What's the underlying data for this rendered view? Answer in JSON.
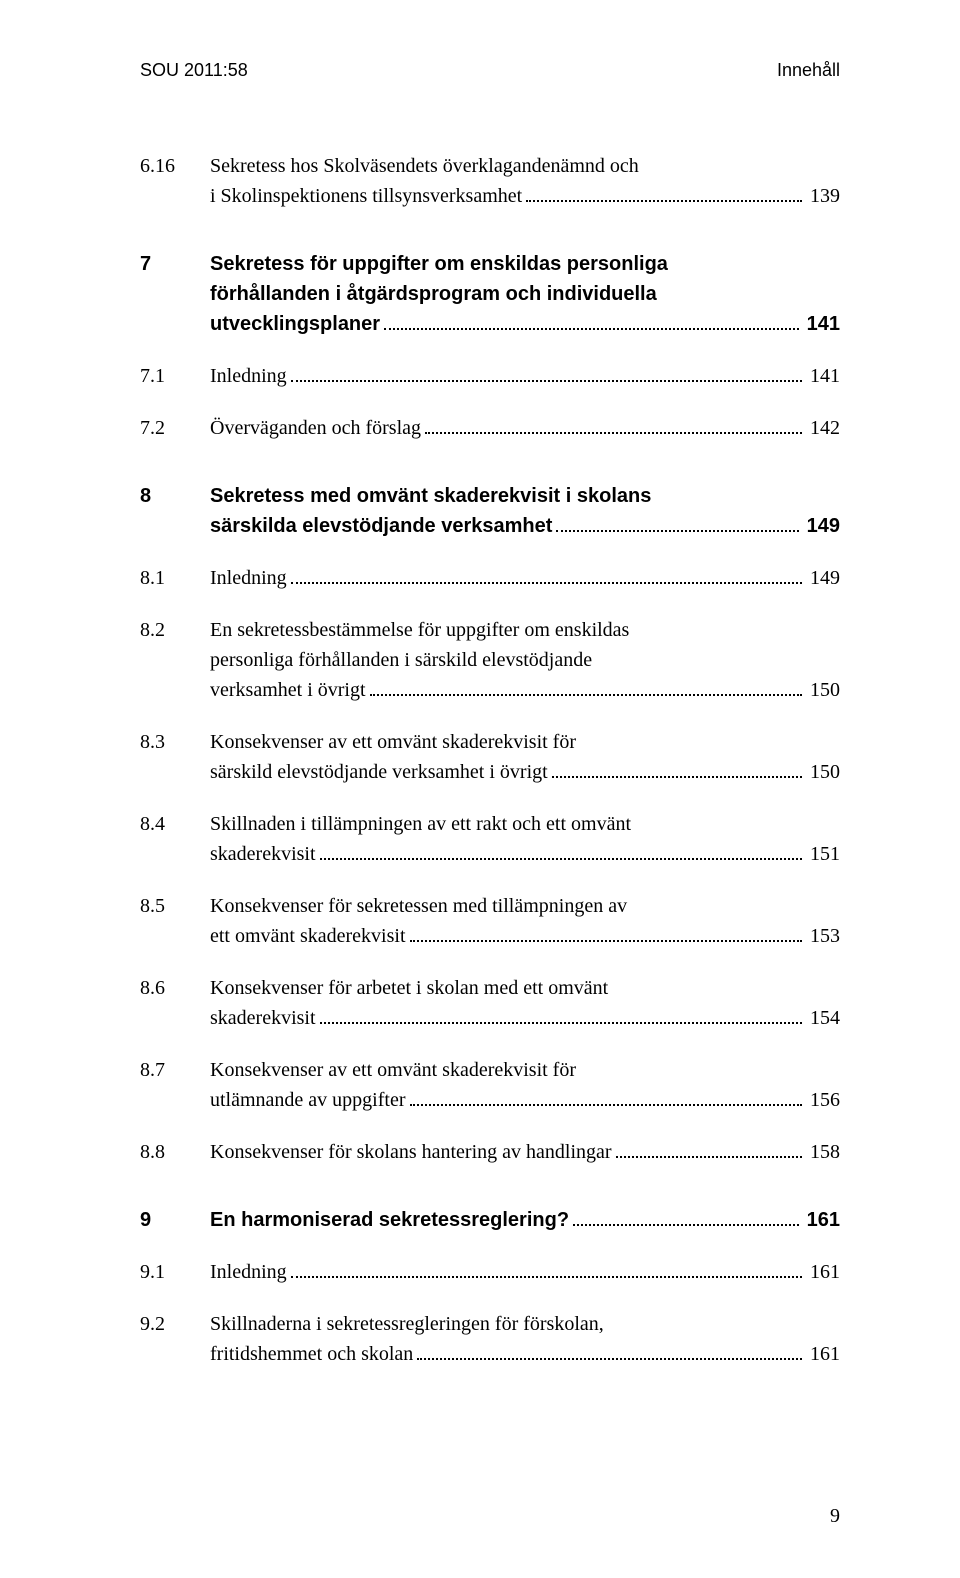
{
  "header": {
    "left": "SOU 2011:58",
    "right": "Innehåll"
  },
  "entries": [
    {
      "num": "6.16",
      "bold": false,
      "lines": [
        "Sekretess hos Skolväsendets överklagandenämnd och"
      ],
      "last": "i Skolinspektionens tillsynsverksamhet",
      "page": "139",
      "space_after": "md"
    },
    {
      "num": "7",
      "bold": true,
      "lines": [
        "Sekretess för uppgifter om enskildas personliga",
        "förhållanden i åtgärdsprogram och individuella"
      ],
      "last": "utvecklingsplaner",
      "page": "141",
      "space_after": "sm"
    },
    {
      "num": "7.1",
      "bold": false,
      "lines": [],
      "last": "Inledning",
      "page": "141",
      "space_after": "sm"
    },
    {
      "num": "7.2",
      "bold": false,
      "lines": [],
      "last": "Överväganden och förslag",
      "page": "142",
      "space_after": "md"
    },
    {
      "num": "8",
      "bold": true,
      "lines": [
        "Sekretess med omvänt skaderekvisit i skolans"
      ],
      "last": "särskilda elevstödjande verksamhet",
      "page": "149",
      "space_after": "sm"
    },
    {
      "num": "8.1",
      "bold": false,
      "lines": [],
      "last": "Inledning",
      "page": "149",
      "space_after": "sm"
    },
    {
      "num": "8.2",
      "bold": false,
      "lines": [
        "En sekretessbestämmelse för uppgifter om enskildas",
        "personliga förhållanden i särskild elevstödjande"
      ],
      "last": "verksamhet i övrigt",
      "page": "150",
      "space_after": "sm"
    },
    {
      "num": "8.3",
      "bold": false,
      "lines": [
        "Konsekvenser av ett omvänt skaderekvisit för"
      ],
      "last": "särskild elevstödjande verksamhet i övrigt",
      "page": "150",
      "space_after": "sm"
    },
    {
      "num": "8.4",
      "bold": false,
      "lines": [
        "Skillnaden i tillämpningen av ett rakt och ett omvänt"
      ],
      "last": "skaderekvisit",
      "page": "151",
      "space_after": "sm"
    },
    {
      "num": "8.5",
      "bold": false,
      "lines": [
        "Konsekvenser för sekretessen med tillämpningen av"
      ],
      "last": "ett omvänt skaderekvisit",
      "page": "153",
      "space_after": "sm"
    },
    {
      "num": "8.6",
      "bold": false,
      "lines": [
        "Konsekvenser för arbetet i skolan med ett omvänt"
      ],
      "last": "skaderekvisit",
      "page": "154",
      "space_after": "sm"
    },
    {
      "num": "8.7",
      "bold": false,
      "lines": [
        "Konsekvenser av ett omvänt skaderekvisit för"
      ],
      "last": "utlämnande av uppgifter",
      "page": "156",
      "space_after": "sm"
    },
    {
      "num": "8.8",
      "bold": false,
      "lines": [],
      "last": "Konsekvenser för skolans hantering av handlingar",
      "page": "158",
      "space_after": "md"
    },
    {
      "num": "9",
      "bold": true,
      "lines": [],
      "last": "En harmoniserad sekretessreglering?",
      "page": "161",
      "space_after": "sm"
    },
    {
      "num": "9.1",
      "bold": false,
      "lines": [],
      "last": "Inledning",
      "page": "161",
      "space_after": "sm"
    },
    {
      "num": "9.2",
      "bold": false,
      "lines": [
        "Skillnaderna i sekretessregleringen för förskolan,"
      ],
      "last": "fritidshemmet och skolan",
      "page": "161",
      "space_after": ""
    }
  ],
  "page_number": "9"
}
